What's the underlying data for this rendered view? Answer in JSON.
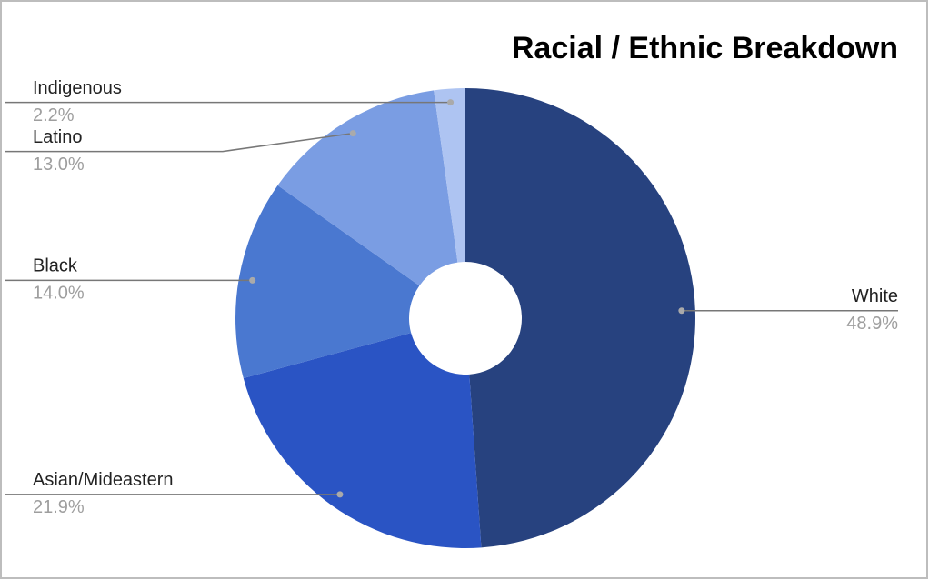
{
  "chart_data": {
    "type": "donut",
    "title": "Racial / Ethnic Breakdown",
    "categories": [
      "White",
      "Asian/Mideastern",
      "Black",
      "Latino",
      "Indigenous"
    ],
    "values": [
      48.9,
      21.9,
      14.0,
      13.0,
      2.2
    ],
    "value_labels": [
      "48.9%",
      "21.9%",
      "14.0%",
      "13.0%",
      "2.2%"
    ],
    "colors": [
      "#27427f",
      "#2a54c4",
      "#4a78d0",
      "#7a9de3",
      "#aec4f2"
    ]
  }
}
